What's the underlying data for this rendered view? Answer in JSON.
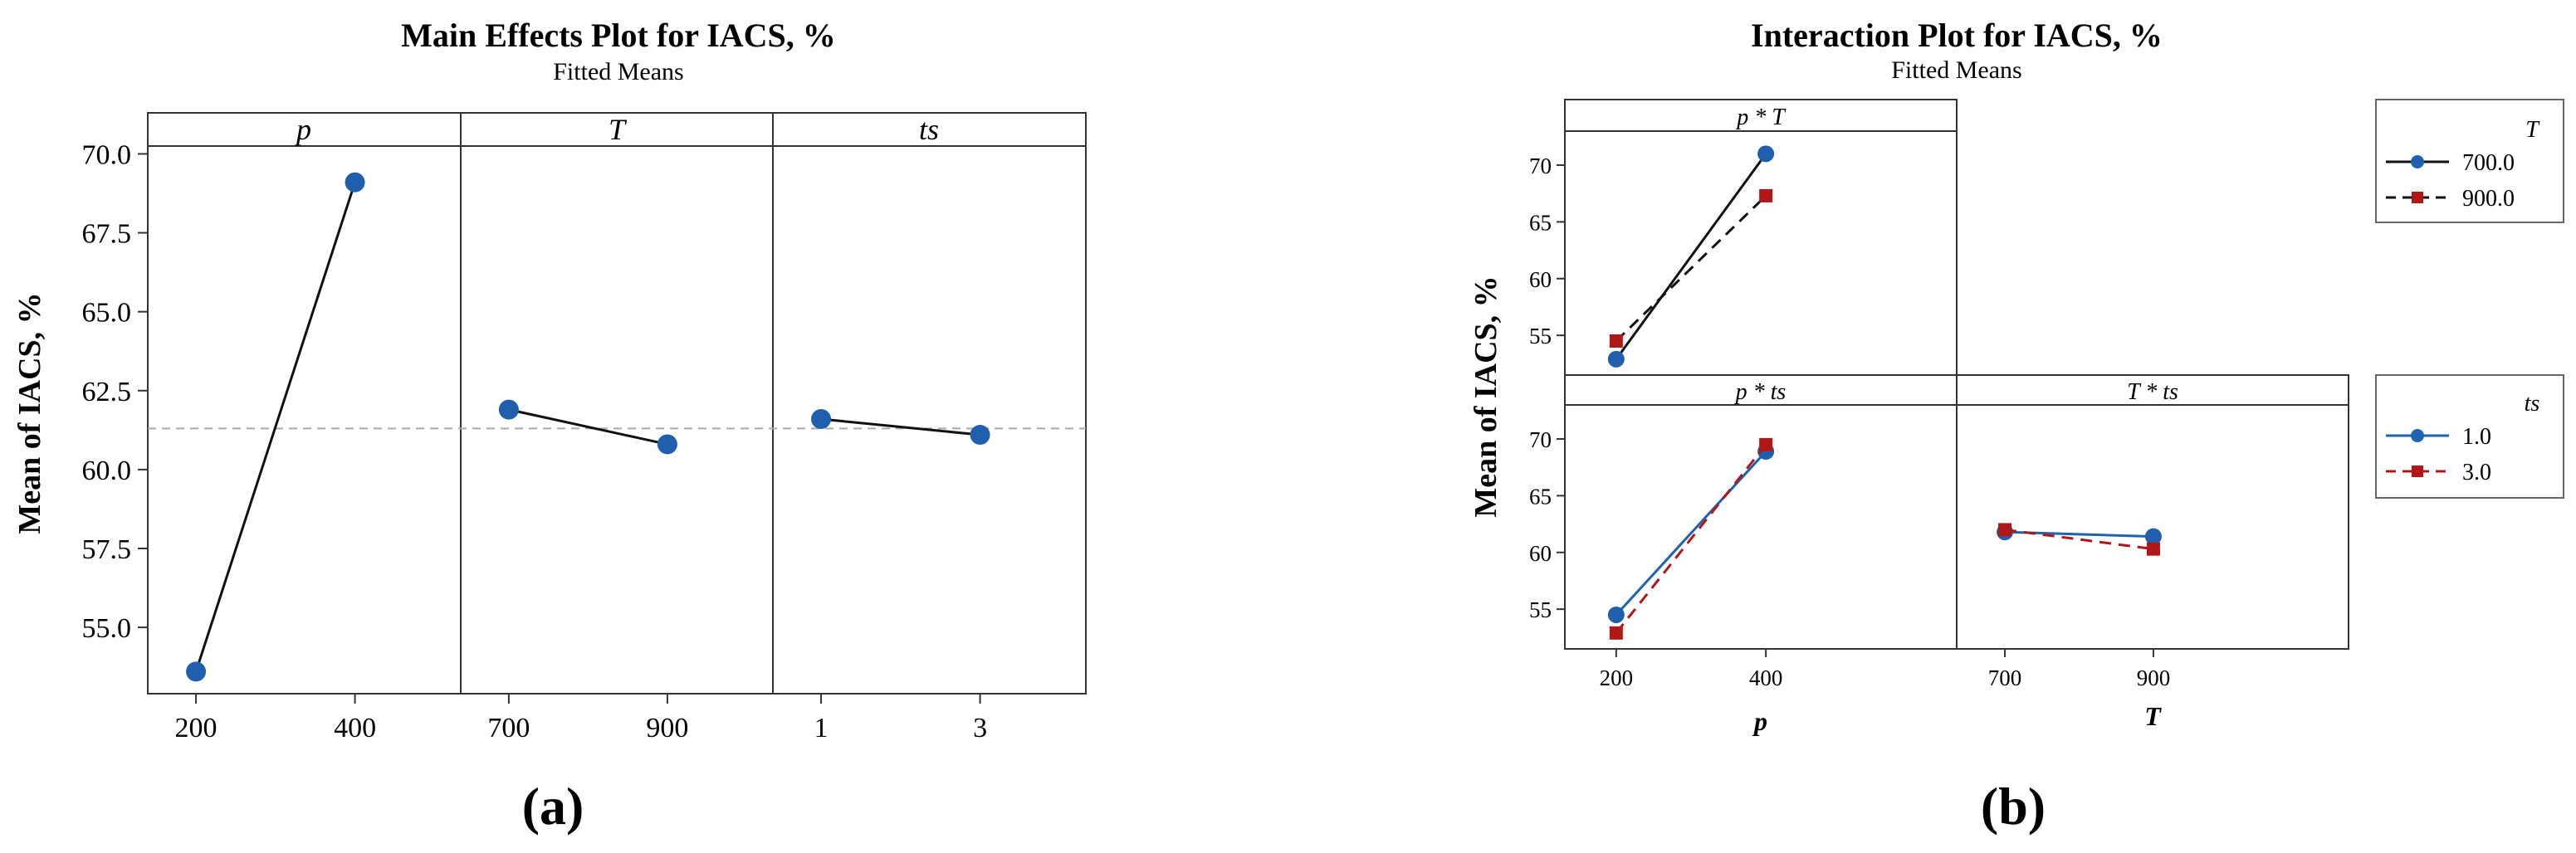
{
  "figure_labels": {
    "a": "(a)",
    "b": "(b)"
  },
  "chart_data": [
    {
      "type": "line",
      "title": "Main Effects Plot for IACS, %",
      "subtitle": "Fitted Means",
      "ylabel": "Mean of IACS, %",
      "ylim": [
        52.9,
        71.3
      ],
      "yticks": [
        55.0,
        57.5,
        60.0,
        62.5,
        65.0,
        67.5,
        70.0
      ],
      "ytick_labels": [
        "55.0",
        "57.5",
        "60.0",
        "62.5",
        "65.0",
        "67.5",
        "70.0"
      ],
      "reference_mean": 61.3,
      "grid": false,
      "panels": [
        {
          "name": "p",
          "categories": [
            "200",
            "400"
          ],
          "values": [
            53.6,
            69.1
          ]
        },
        {
          "name": "T",
          "categories": [
            "700",
            "900"
          ],
          "values": [
            61.9,
            60.8
          ]
        },
        {
          "name": "ts",
          "categories": [
            "1",
            "3"
          ],
          "values": [
            61.6,
            61.1
          ]
        }
      ],
      "line_color": "#111111",
      "marker_color": "#1f5fad"
    },
    {
      "type": "line",
      "title": "Interaction Plot for IACS, %",
      "subtitle": "Fitted Means",
      "ylabel": "Mean of IACS, %",
      "ylim": [
        51.5,
        73.0
      ],
      "yticks": [
        55,
        60,
        65,
        70
      ],
      "ytick_labels": [
        "55",
        "60",
        "65",
        "70"
      ],
      "grid": false,
      "panels": [
        {
          "name": "p * T",
          "x_factor": "p",
          "categories": [
            "200",
            "400"
          ],
          "series": [
            {
              "name": "700.0",
              "values": [
                52.9,
                71.0
              ]
            },
            {
              "name": "900.0",
              "values": [
                54.5,
                67.3
              ]
            }
          ]
        },
        {
          "name": "p * ts",
          "x_factor": "p",
          "categories": [
            "200",
            "400"
          ],
          "series": [
            {
              "name": "1.0",
              "values": [
                54.5,
                68.9
              ]
            },
            {
              "name": "3.0",
              "values": [
                52.9,
                69.5
              ]
            }
          ]
        },
        {
          "name": "T * ts",
          "x_factor": "T",
          "categories": [
            "700",
            "900"
          ],
          "series": [
            {
              "name": "1.0",
              "values": [
                61.8,
                61.4
              ]
            },
            {
              "name": "3.0",
              "values": [
                62.0,
                60.3
              ]
            }
          ]
        }
      ],
      "xlabels": [
        "p",
        "T"
      ],
      "legends": [
        {
          "title": "T",
          "placement": "top-right",
          "entries": [
            {
              "name": "700.0",
              "color": "#111111",
              "marker": "circle",
              "dash": "solid"
            },
            {
              "name": "900.0",
              "color": "#111111",
              "marker": "square",
              "dash": "dashed",
              "marker_color": "#b01818"
            }
          ]
        },
        {
          "title": "ts",
          "placement": "right",
          "entries": [
            {
              "name": "1.0",
              "color": "#1f63b0",
              "marker": "circle",
              "dash": "solid"
            },
            {
              "name": "3.0",
              "color": "#b01818",
              "marker": "square",
              "dash": "dashed"
            }
          ]
        }
      ]
    }
  ]
}
